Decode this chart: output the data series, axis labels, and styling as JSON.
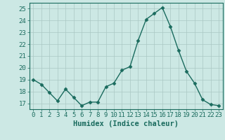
{
  "x": [
    0,
    1,
    2,
    3,
    4,
    5,
    6,
    7,
    8,
    9,
    10,
    11,
    12,
    13,
    14,
    15,
    16,
    17,
    18,
    19,
    20,
    21,
    22,
    23
  ],
  "y": [
    19.0,
    18.6,
    17.9,
    17.2,
    18.2,
    17.5,
    16.8,
    17.1,
    17.1,
    18.4,
    18.7,
    19.8,
    20.1,
    22.3,
    24.1,
    24.6,
    25.1,
    23.5,
    21.5,
    19.7,
    18.7,
    17.3,
    16.9,
    16.8
  ],
  "line_color": "#1a6b5e",
  "marker": "D",
  "markersize": 2.5,
  "linewidth": 1.0,
  "bg_color": "#cce8e4",
  "grid_color": "#aac8c4",
  "xlabel": "Humidex (Indice chaleur)",
  "xlim": [
    -0.5,
    23.5
  ],
  "ylim": [
    16.5,
    25.5
  ],
  "yticks": [
    17,
    18,
    19,
    20,
    21,
    22,
    23,
    24,
    25
  ],
  "xticks": [
    0,
    1,
    2,
    3,
    4,
    5,
    6,
    7,
    8,
    9,
    10,
    11,
    12,
    13,
    14,
    15,
    16,
    17,
    18,
    19,
    20,
    21,
    22,
    23
  ],
  "xlabel_fontsize": 7.5,
  "tick_fontsize": 6.5,
  "text_color": "#1a6b5e"
}
